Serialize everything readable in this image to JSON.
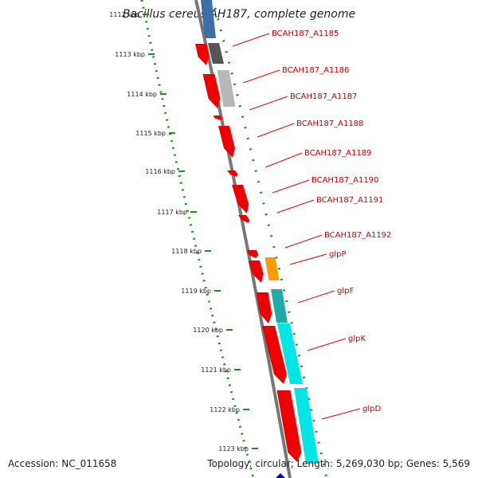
{
  "title": "Bacillus cereus AH187, complete genome",
  "footer": {
    "accession": "Accession: NC_011658",
    "summary": "Topology: circular; Length: 5,269,030 bp; Genes: 5,569"
  },
  "scale_ticks": [
    "1112 kbp",
    "1113 kbp",
    "1114 kbp",
    "1115 kbp",
    "1116 kbp",
    "1117 kbp",
    "1118 kbp",
    "1119 kbp",
    "1120 kbp",
    "1121 kbp",
    "1122 kbp",
    "1123 kbp"
  ],
  "gene_labels": [
    "BCAH187_A1185",
    "BCAH187_A1186",
    "BCAH187_A1187",
    "BCAH187_A1188",
    "BCAH187_A1189",
    "BCAH187_A1190",
    "BCAH187_A1191",
    "BCAH187_A1192",
    "glpP",
    "glpF",
    "glpK",
    "glpD"
  ],
  "colors": {
    "gene_red": "#ee0000",
    "blue": "#3a6fa8",
    "dark_gray": "#555555",
    "light_gray": "#b8b8b8",
    "orange": "#ff9900",
    "teal": "#22aaaa",
    "cyan": "#00e5e5",
    "scale_green": "#228b22",
    "backbone": "#777777"
  }
}
